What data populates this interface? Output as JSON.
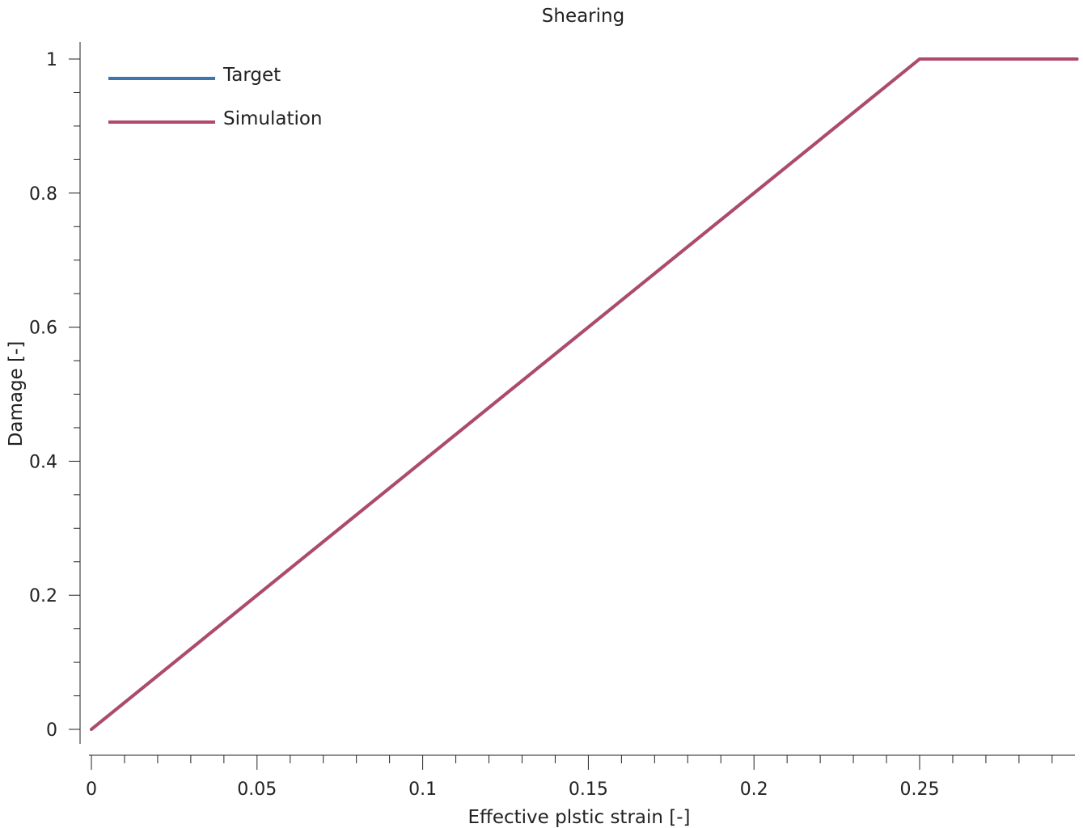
{
  "chart_data": {
    "type": "line",
    "title": "Shearing",
    "xlabel": "Effective plstic strain [-]",
    "ylabel": "Damage [-]",
    "xlim": [
      0,
      0.2975
    ],
    "ylim": [
      0,
      1
    ],
    "x_ticks": [
      0,
      0.05,
      0.1,
      0.15,
      0.2,
      0.25
    ],
    "x_tick_labels": [
      "0",
      "0.05",
      "0.1",
      "0.15",
      "0.2",
      "0.25"
    ],
    "y_ticks": [
      0,
      0.2,
      0.4,
      0.6,
      0.8,
      1
    ],
    "y_tick_labels": [
      "0",
      "0.2",
      "0.4",
      "0.6",
      "0.8",
      "1"
    ],
    "grid": false,
    "legend_position": "top-left",
    "series": [
      {
        "name": "Target",
        "color": "#3a77af",
        "x": [
          0,
          0.25,
          0.2975
        ],
        "y": [
          0,
          1,
          1
        ]
      },
      {
        "name": "Simulation",
        "color": "#b04a6c",
        "x": [
          0,
          0.25,
          0.2975
        ],
        "y": [
          0,
          1,
          1
        ]
      }
    ]
  }
}
